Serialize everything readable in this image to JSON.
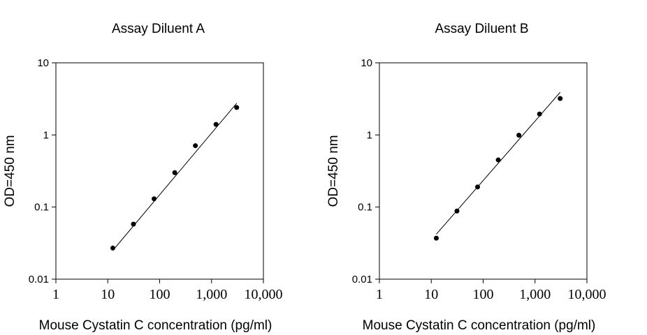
{
  "chart_data": [
    {
      "type": "scatter",
      "title": "Assay Diluent A",
      "xlabel": "Mouse Cystatin C concentration (pg/ml)",
      "ylabel": "OD=450 nm",
      "x_scale": "log",
      "y_scale": "log",
      "xlim": [
        1,
        10000
      ],
      "ylim": [
        0.01,
        10
      ],
      "x_ticks": [
        1,
        10,
        100,
        1000,
        10000
      ],
      "x_tick_labels": [
        "1",
        "10",
        "100",
        "1,000",
        "10,000"
      ],
      "y_ticks": [
        0.01,
        0.1,
        1,
        10
      ],
      "y_tick_labels": [
        "0.01",
        "0.1",
        "1",
        "10"
      ],
      "points": {
        "x": [
          12.5,
          31.25,
          78.1,
          195.3,
          488.3,
          1220.7,
          3051.8
        ],
        "y": [
          0.027,
          0.058,
          0.13,
          0.3,
          0.71,
          1.4,
          2.4
        ]
      },
      "fit_line": {
        "x": [
          12.5,
          3051.8
        ],
        "y": [
          0.025,
          2.75
        ]
      }
    },
    {
      "type": "scatter",
      "title": "Assay Diluent B",
      "xlabel": "Mouse Cystatin C concentration (pg/ml)",
      "ylabel": "OD=450 nm",
      "x_scale": "log",
      "y_scale": "log",
      "xlim": [
        1,
        10000
      ],
      "ylim": [
        0.01,
        10
      ],
      "x_ticks": [
        1,
        10,
        100,
        1000,
        10000
      ],
      "x_tick_labels": [
        "1",
        "10",
        "100",
        "1,000",
        "10,000"
      ],
      "y_ticks": [
        0.01,
        0.1,
        1,
        10
      ],
      "y_tick_labels": [
        "0.01",
        "0.1",
        "1",
        "10"
      ],
      "points": {
        "x": [
          12.5,
          31.25,
          78.1,
          195.3,
          488.3,
          1220.7,
          3051.8
        ],
        "y": [
          0.037,
          0.088,
          0.19,
          0.45,
          0.99,
          1.95,
          3.2
        ]
      },
      "fit_line": {
        "x": [
          12.5,
          3051.8
        ],
        "y": [
          0.042,
          3.9
        ]
      }
    }
  ]
}
